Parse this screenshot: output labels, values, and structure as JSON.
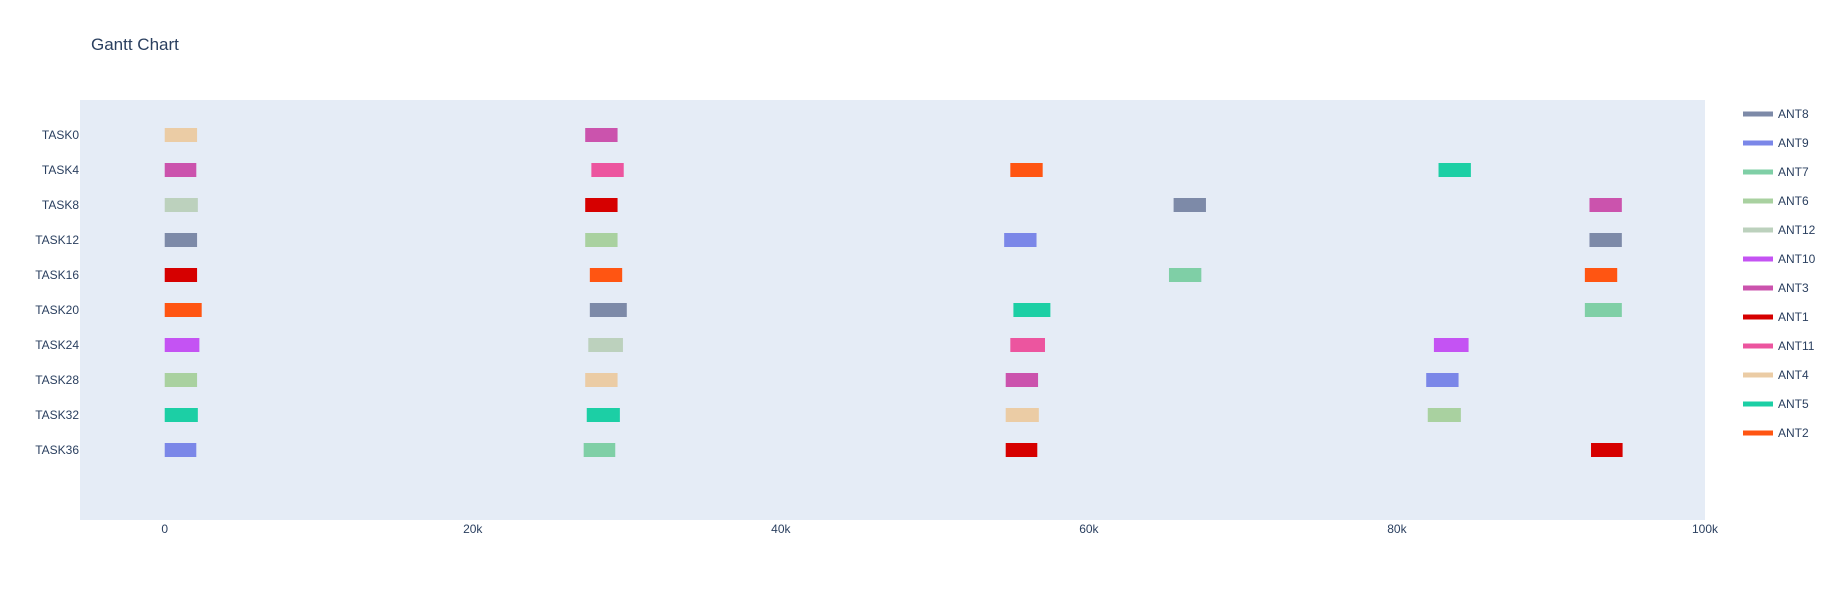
{
  "chart_data": {
    "type": "gantt",
    "title": "Gantt Chart",
    "xlabel": "",
    "ylabel": "",
    "xlim": [
      -5500,
      100000
    ],
    "x_ticks": [
      {
        "value": 0,
        "label": "0"
      },
      {
        "value": 20000,
        "label": "20k"
      },
      {
        "value": 40000,
        "label": "40k"
      },
      {
        "value": 60000,
        "label": "60k"
      },
      {
        "value": 80000,
        "label": "80k"
      },
      {
        "value": 100000,
        "label": "100k"
      }
    ],
    "y_range": [
      -1.0,
      11.0
    ],
    "tasks": [
      "TASK0",
      "TASK4",
      "TASK8",
      "TASK12",
      "TASK16",
      "TASK20",
      "TASK24",
      "TASK28",
      "TASK32",
      "TASK36"
    ],
    "legend_position": "right",
    "series": [
      {
        "name": "ANT8",
        "color": "#7d8aa8"
      },
      {
        "name": "ANT9",
        "color": "#7b87e8"
      },
      {
        "name": "ANT7",
        "color": "#7fcfa6"
      },
      {
        "name": "ANT6",
        "color": "#a9d1a0"
      },
      {
        "name": "ANT12",
        "color": "#bcd1bd"
      },
      {
        "name": "ANT10",
        "color": "#c453f3"
      },
      {
        "name": "ANT3",
        "color": "#cb53ad"
      },
      {
        "name": "ANT1",
        "color": "#d60000"
      },
      {
        "name": "ANT11",
        "color": "#ec559f"
      },
      {
        "name": "ANT4",
        "color": "#ebcca5"
      },
      {
        "name": "ANT5",
        "color": "#1ccfa5"
      },
      {
        "name": "ANT2",
        "color": "#ff5512"
      }
    ],
    "bars": [
      {
        "task": "TASK0",
        "series": "ANT4",
        "start": 0,
        "end": 2100
      },
      {
        "task": "TASK0",
        "series": "ANT3",
        "start": 27300,
        "end": 29400
      },
      {
        "task": "TASK4",
        "series": "ANT3",
        "start": 0,
        "end": 2050
      },
      {
        "task": "TASK4",
        "series": "ANT11",
        "start": 27700,
        "end": 29800
      },
      {
        "task": "TASK4",
        "series": "ANT2",
        "start": 54900,
        "end": 57000
      },
      {
        "task": "TASK4",
        "series": "ANT5",
        "start": 82700,
        "end": 84800
      },
      {
        "task": "TASK8",
        "series": "ANT12",
        "start": 0,
        "end": 2150
      },
      {
        "task": "TASK8",
        "series": "ANT1",
        "start": 27300,
        "end": 29400
      },
      {
        "task": "TASK8",
        "series": "ANT8",
        "start": 65500,
        "end": 67600
      },
      {
        "task": "TASK8",
        "series": "ANT3",
        "start": 92500,
        "end": 94600
      },
      {
        "task": "TASK12",
        "series": "ANT8",
        "start": 0,
        "end": 2100
      },
      {
        "task": "TASK12",
        "series": "ANT6",
        "start": 27300,
        "end": 29400
      },
      {
        "task": "TASK12",
        "series": "ANT9",
        "start": 54500,
        "end": 56600
      },
      {
        "task": "TASK12",
        "series": "ANT8",
        "start": 92500,
        "end": 94600
      },
      {
        "task": "TASK16",
        "series": "ANT1",
        "start": 0,
        "end": 2100
      },
      {
        "task": "TASK16",
        "series": "ANT2",
        "start": 27600,
        "end": 29700
      },
      {
        "task": "TASK16",
        "series": "ANT7",
        "start": 65200,
        "end": 67300
      },
      {
        "task": "TASK16",
        "series": "ANT2",
        "start": 92200,
        "end": 94300
      },
      {
        "task": "TASK20",
        "series": "ANT2",
        "start": 0,
        "end": 2400
      },
      {
        "task": "TASK20",
        "series": "ANT8",
        "start": 27600,
        "end": 30000
      },
      {
        "task": "TASK20",
        "series": "ANT5",
        "start": 55100,
        "end": 57500
      },
      {
        "task": "TASK20",
        "series": "ANT7",
        "start": 92200,
        "end": 94600
      },
      {
        "task": "TASK24",
        "series": "ANT10",
        "start": 0,
        "end": 2250
      },
      {
        "task": "TASK24",
        "series": "ANT12",
        "start": 27500,
        "end": 29750
      },
      {
        "task": "TASK24",
        "series": "ANT11",
        "start": 54900,
        "end": 57150
      },
      {
        "task": "TASK24",
        "series": "ANT10",
        "start": 82400,
        "end": 84650
      },
      {
        "task": "TASK28",
        "series": "ANT6",
        "start": 0,
        "end": 2100
      },
      {
        "task": "TASK28",
        "series": "ANT4",
        "start": 27300,
        "end": 29400
      },
      {
        "task": "TASK28",
        "series": "ANT3",
        "start": 54600,
        "end": 56700
      },
      {
        "task": "TASK28",
        "series": "ANT9",
        "start": 81900,
        "end": 84000
      },
      {
        "task": "TASK32",
        "series": "ANT5",
        "start": 0,
        "end": 2150
      },
      {
        "task": "TASK32",
        "series": "ANT5",
        "start": 27400,
        "end": 29550
      },
      {
        "task": "TASK32",
        "series": "ANT4",
        "start": 54600,
        "end": 56750
      },
      {
        "task": "TASK32",
        "series": "ANT6",
        "start": 82000,
        "end": 84150
      },
      {
        "task": "TASK36",
        "series": "ANT9",
        "start": 0,
        "end": 2050
      },
      {
        "task": "TASK36",
        "series": "ANT7",
        "start": 27200,
        "end": 29250
      },
      {
        "task": "TASK36",
        "series": "ANT1",
        "start": 54600,
        "end": 56650
      },
      {
        "task": "TASK36",
        "series": "ANT1",
        "start": 92600,
        "end": 94650
      }
    ]
  }
}
